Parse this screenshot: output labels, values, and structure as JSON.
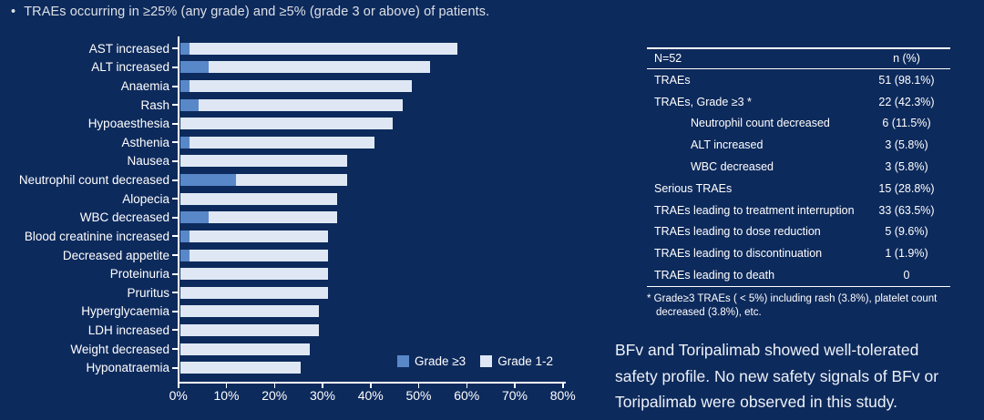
{
  "slide": {
    "bullet_marker": "•",
    "bullet_text": "TRAEs occurring in ≥25% (any grade) and ≥5% (grade 3 or above) of patients.",
    "conclusion_lines": [
      "BFv and Toripalimab showed well-tolerated",
      "safety profile. No new safety signals of BFv or",
      "Toripalimab were observed in this study."
    ]
  },
  "colors": {
    "background": "#0D2A5C",
    "grade3_blue": "#5988C9",
    "grade12_light": "#DEE7F3",
    "text_white": "#FFFFFF"
  },
  "chart_data": {
    "type": "bar",
    "orientation": "horizontal",
    "title": "",
    "xlabel": "",
    "ylabel": "",
    "xlim": [
      0,
      80
    ],
    "x_tick_labels": [
      "0%",
      "10%",
      "20%",
      "30%",
      "40%",
      "50%",
      "60%",
      "70%",
      "80%"
    ],
    "grid": false,
    "legend_position": "bottom-right",
    "categories": [
      "AST increased",
      "ALT increased",
      "Anaemia",
      "Rash",
      "Hypoaesthesia",
      "Asthenia",
      "Nausea",
      "Neutrophil count decreased",
      "Alopecia",
      "WBC decreased",
      "Blood creatinine increased",
      "Decreased appetite",
      "Proteinuria",
      "Pruritus",
      "Hyperglycaemia",
      "LDH increased",
      "Weight decreased",
      "Hyponatraemia"
    ],
    "series": [
      {
        "name": "Grade ≥3",
        "color": "#5988C9",
        "values": [
          1.9,
          5.8,
          1.9,
          3.8,
          0,
          1.9,
          0,
          11.5,
          0,
          5.8,
          1.9,
          1.9,
          0,
          0,
          0,
          0,
          0,
          0
        ]
      },
      {
        "name": "Grade 1-2",
        "color": "#DEE7F3",
        "values": [
          55.8,
          46.2,
          46.2,
          42.3,
          44.2,
          38.5,
          34.6,
          23.1,
          32.7,
          26.9,
          28.8,
          28.8,
          30.8,
          30.8,
          28.8,
          28.8,
          26.9,
          25.0
        ]
      }
    ],
    "any_grade_totals": [
      57.7,
      51.9,
      48.1,
      46.2,
      44.2,
      40.4,
      34.6,
      34.6,
      32.7,
      32.7,
      30.8,
      30.8,
      30.8,
      30.8,
      28.8,
      28.8,
      26.9,
      25.0
    ],
    "legend": [
      {
        "label": "Grade ≥3",
        "color": "#5988C9"
      },
      {
        "label": "Grade 1-2",
        "color": "#DEE7F3"
      }
    ]
  },
  "table": {
    "header": {
      "col1": "N=52",
      "col2": "n (%)"
    },
    "rows": [
      {
        "label": "TRAEs",
        "value": "51 (98.1%)",
        "indent": false
      },
      {
        "label": "TRAEs, Grade ≥3 *",
        "value": "22 (42.3%)",
        "indent": false
      },
      {
        "label": "Neutrophil count decreased",
        "value": "6 (11.5%)",
        "indent": true
      },
      {
        "label": "ALT increased",
        "value": "3 (5.8%)",
        "indent": true
      },
      {
        "label": "WBC decreased",
        "value": "3 (5.8%)",
        "indent": true
      },
      {
        "label": "Serious TRAEs",
        "value": "15 (28.8%)",
        "indent": false
      },
      {
        "label": "TRAEs leading to treatment interruption",
        "value": "33 (63.5%)",
        "indent": false
      },
      {
        "label": "TRAEs leading to dose reduction",
        "value": "5 (9.6%)",
        "indent": false
      },
      {
        "label": "TRAEs leading to discontinuation",
        "value": "1 (1.9%)",
        "indent": false
      },
      {
        "label": "TRAEs leading to death",
        "value": "0",
        "indent": false
      }
    ],
    "footnote_lines": [
      "* Grade≥3 TRAEs ( < 5%) including rash (3.8%), platelet count",
      "decreased (3.8%), etc."
    ]
  }
}
